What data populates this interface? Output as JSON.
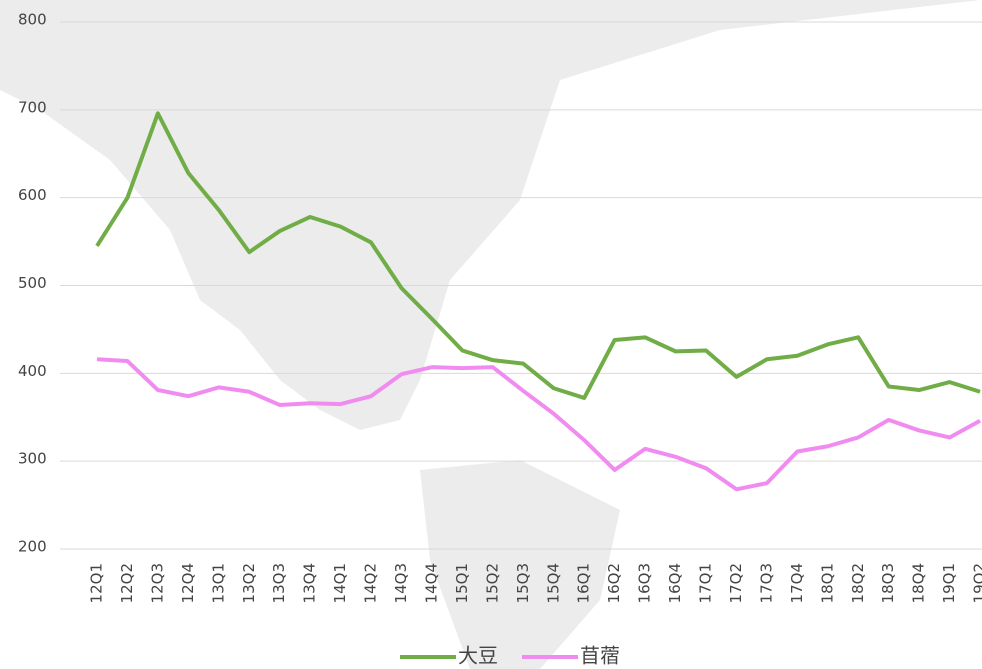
{
  "chart_data": {
    "type": "line",
    "categories": [
      "12Q1",
      "12Q2",
      "12Q3",
      "12Q4",
      "13Q1",
      "13Q2",
      "13Q3",
      "13Q4",
      "14Q1",
      "14Q2",
      "14Q3",
      "14Q4",
      "15Q1",
      "15Q2",
      "15Q3",
      "15Q4",
      "16Q1",
      "16Q2",
      "16Q3",
      "16Q4",
      "17Q1",
      "17Q2",
      "17Q3",
      "17Q4",
      "18Q1",
      "18Q2",
      "18Q3",
      "18Q4",
      "19Q1",
      "19Q2"
    ],
    "series": [
      {
        "name": "大豆",
        "color": "#70ad47",
        "values": [
          545,
          600,
          696,
          628,
          586,
          538,
          562,
          578,
          567,
          549,
          497,
          462,
          426,
          415,
          411,
          383,
          372,
          438,
          441,
          425,
          426,
          396,
          416,
          420,
          433,
          441,
          385,
          381,
          390,
          379
        ]
      },
      {
        "name": "苜蓿",
        "color": "#f08cf0",
        "values": [
          416,
          414,
          381,
          374,
          384,
          379,
          364,
          366,
          365,
          374,
          399,
          407,
          406,
          407,
          380,
          354,
          324,
          290,
          314,
          305,
          292,
          268,
          275,
          311,
          317,
          327,
          347,
          335,
          327,
          346
        ]
      }
    ],
    "ylim": [
      200,
      800
    ],
    "yticks": [
      200,
      300,
      400,
      500,
      600,
      700,
      800
    ],
    "grid": true,
    "legend": "bottom"
  }
}
